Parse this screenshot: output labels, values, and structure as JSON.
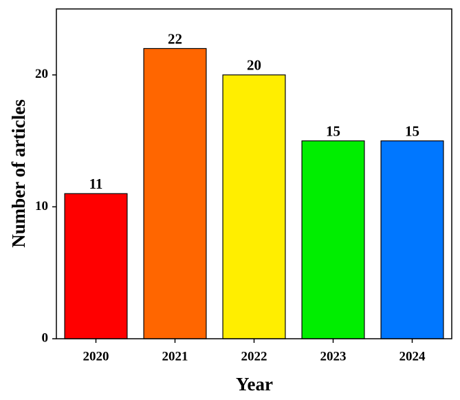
{
  "chart_data": {
    "type": "bar",
    "x_label": "Year",
    "y_label": "Number of articles",
    "categories": [
      "2020",
      "2021",
      "2022",
      "2023",
      "2024"
    ],
    "values": [
      11,
      22,
      20,
      15,
      15
    ],
    "colors": [
      "#ff0000",
      "#ff6600",
      "#ffee00",
      "#00ee00",
      "#0077ff"
    ],
    "ylim": [
      0,
      25
    ],
    "yticks": [
      0,
      10,
      20
    ],
    "grid": false
  }
}
